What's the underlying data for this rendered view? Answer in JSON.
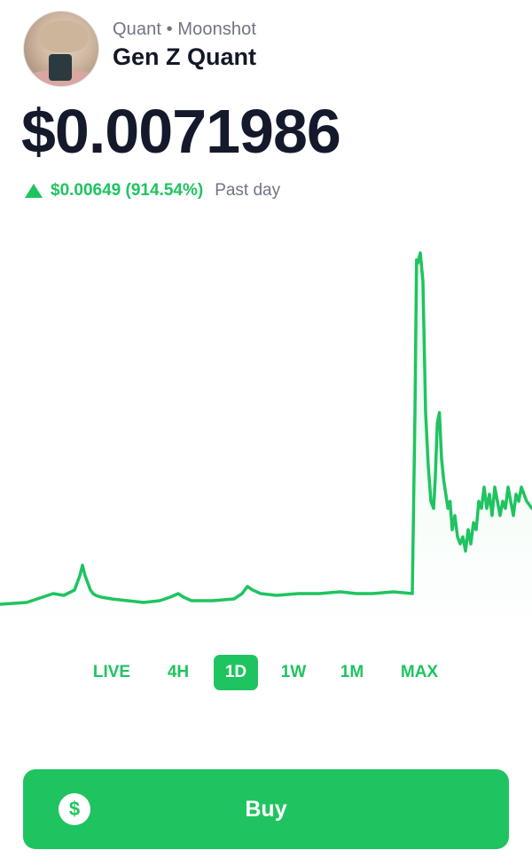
{
  "header": {
    "subtitle": "Quant • Moonshot",
    "title": "Gen Z Quant",
    "avatar_icon": "profile-photo"
  },
  "price": "$0.0071986",
  "change": {
    "icon": "triangle-up-icon",
    "value": "$0.00649 (914.54%)",
    "period": "Past day"
  },
  "colors": {
    "accent": "#1fc460",
    "text": "#141a2b",
    "muted": "#6f7585"
  },
  "chart_data": {
    "type": "area",
    "title": "",
    "xlabel": "",
    "ylabel": "",
    "ylim": [
      0,
      1
    ],
    "grid": false,
    "x": [
      0,
      0.05,
      0.08,
      0.1,
      0.12,
      0.14,
      0.15,
      0.155,
      0.16,
      0.165,
      0.17,
      0.175,
      0.18,
      0.19,
      0.21,
      0.24,
      0.27,
      0.3,
      0.32,
      0.335,
      0.345,
      0.36,
      0.4,
      0.44,
      0.455,
      0.465,
      0.475,
      0.49,
      0.52,
      0.56,
      0.6,
      0.64,
      0.67,
      0.7,
      0.74,
      0.775,
      0.78,
      0.783,
      0.785,
      0.79,
      0.795,
      0.8,
      0.805,
      0.81,
      0.815,
      0.818,
      0.822,
      0.826,
      0.83,
      0.834,
      0.838,
      0.842,
      0.846,
      0.85,
      0.855,
      0.86,
      0.865,
      0.87,
      0.875,
      0.88,
      0.885,
      0.89,
      0.895,
      0.9,
      0.905,
      0.91,
      0.915,
      0.92,
      0.925,
      0.93,
      0.935,
      0.94,
      0.945,
      0.95,
      0.955,
      0.96,
      0.965,
      0.97,
      0.975,
      0.98,
      0.985,
      0.99,
      1.0
    ],
    "values": [
      0.01,
      0.015,
      0.03,
      0.04,
      0.035,
      0.05,
      0.09,
      0.12,
      0.09,
      0.07,
      0.05,
      0.04,
      0.035,
      0.03,
      0.025,
      0.02,
      0.015,
      0.02,
      0.03,
      0.04,
      0.03,
      0.02,
      0.02,
      0.025,
      0.04,
      0.06,
      0.05,
      0.04,
      0.035,
      0.04,
      0.04,
      0.045,
      0.04,
      0.04,
      0.045,
      0.04,
      0.55,
      0.98,
      0.97,
      1.0,
      0.92,
      0.55,
      0.4,
      0.3,
      0.28,
      0.36,
      0.52,
      0.55,
      0.42,
      0.36,
      0.32,
      0.28,
      0.3,
      0.22,
      0.26,
      0.2,
      0.18,
      0.2,
      0.16,
      0.22,
      0.18,
      0.24,
      0.22,
      0.3,
      0.28,
      0.34,
      0.28,
      0.32,
      0.26,
      0.34,
      0.3,
      0.26,
      0.3,
      0.28,
      0.34,
      0.3,
      0.26,
      0.32,
      0.3,
      0.34,
      0.32,
      0.3,
      0.28
    ]
  },
  "tabs": [
    {
      "label": "LIVE"
    },
    {
      "label": "4H"
    },
    {
      "label": "1D"
    },
    {
      "label": "1W"
    },
    {
      "label": "1M"
    },
    {
      "label": "MAX"
    }
  ],
  "buy_button": {
    "label": "Buy",
    "icon": "dollar-sign-icon",
    "icon_glyph": "$"
  }
}
